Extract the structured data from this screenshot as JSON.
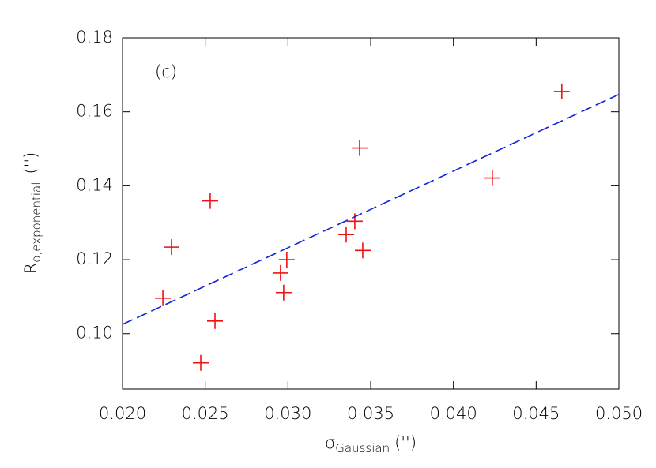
{
  "chart_data": {
    "type": "scatter",
    "annotation": "(c)",
    "xlabel": {
      "symbol": "σ",
      "sub": "Gaussian",
      "unit": "('')"
    },
    "ylabel": {
      "symbol": "R",
      "sub": "o,exponential",
      "unit": "('')"
    },
    "xlim": [
      0.02,
      0.05
    ],
    "xticks": [
      {
        "value": 0.02,
        "label": "0.020"
      },
      0.025,
      {
        "value": 0.03,
        "label": "0.030"
      },
      0.035,
      {
        "value": 0.04,
        "label": "0.040"
      },
      0.045,
      {
        "value": 0.05,
        "label": "0.050"
      }
    ],
    "ylim": [
      0.085,
      0.18
    ],
    "yticks": [
      {
        "value": 0.1,
        "label": "0.10"
      },
      0.12,
      0.14,
      0.16,
      0.18
    ],
    "series": [
      {
        "color": "#ee1111",
        "marker": "+",
        "x": [
          0.04655,
          0.03433,
          0.04235,
          0.0253,
          0.03404,
          0.03352,
          0.02296,
          0.03452,
          0.02993,
          0.02955,
          0.02974,
          0.02244,
          0.02559,
          0.02473
        ],
        "values": [
          0.1655,
          0.1502,
          0.1421,
          0.1359,
          0.1304,
          0.1268,
          0.1234,
          0.1225,
          0.12,
          0.1164,
          0.1111,
          0.1096,
          0.1034,
          0.0921
        ]
      },
      {
        "color": "#1122dd",
        "line_style": "dashed",
        "x": [
          0.02,
          0.05
        ],
        "values": [
          0.1025,
          0.1647
        ]
      }
    ]
  }
}
